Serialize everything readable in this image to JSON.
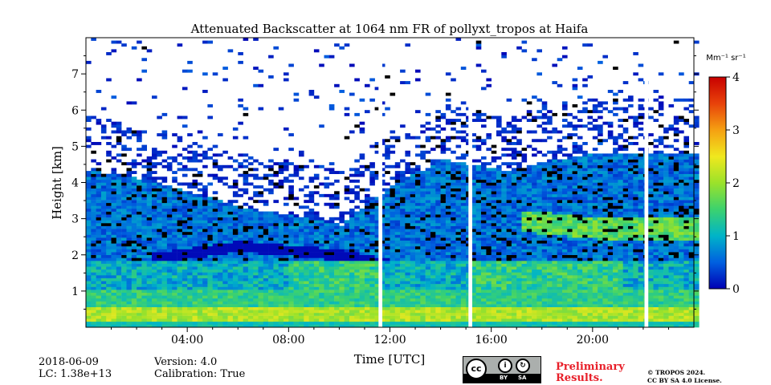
{
  "chart_data": {
    "type": "heatmap",
    "title": "Attenuated Backscatter at 1064 nm FR of pollyxt_tropos at Haifa",
    "xlabel": "Time [UTC]",
    "ylabel": "Height [km]",
    "xlim_hours": [
      0,
      24
    ],
    "ylim_km": [
      0,
      8
    ],
    "x_ticks": [
      {
        "value": 4,
        "label": "04:00"
      },
      {
        "value": 8,
        "label": "08:00"
      },
      {
        "value": 12,
        "label": "12:00"
      },
      {
        "value": 16,
        "label": "16:00"
      },
      {
        "value": 20,
        "label": "20:00"
      }
    ],
    "y_ticks": [
      {
        "value": 1,
        "label": "1"
      },
      {
        "value": 2,
        "label": "2"
      },
      {
        "value": 3,
        "label": "3"
      },
      {
        "value": 4,
        "label": "4"
      },
      {
        "value": 5,
        "label": "5"
      },
      {
        "value": 6,
        "label": "6"
      },
      {
        "value": 7,
        "label": "7"
      }
    ],
    "colorbar": {
      "label": "Mm⁻¹ sr⁻¹",
      "range": [
        0,
        4
      ],
      "ticks": [
        {
          "value": 0,
          "label": "0"
        },
        {
          "value": 1,
          "label": "1"
        },
        {
          "value": 2,
          "label": "2"
        },
        {
          "value": 3,
          "label": "3"
        },
        {
          "value": 4,
          "label": "4"
        }
      ],
      "colormap": [
        "#0000b4",
        "#0060e0",
        "#00b4c8",
        "#3cd26e",
        "#9be22a",
        "#f0e81e",
        "#f5a012",
        "#e8420a",
        "#c80000"
      ]
    },
    "no_data_gaps_hours": [
      [
        11.55,
        11.7
      ],
      [
        15.1,
        15.25
      ],
      [
        22.05,
        22.2
      ]
    ],
    "features": {
      "aerosol_layer_top_km": [
        [
          0,
          4.3
        ],
        [
          2.5,
          4.0
        ],
        [
          6,
          3.3
        ],
        [
          10,
          2.8
        ],
        [
          12,
          3.9
        ],
        [
          14,
          4.6
        ],
        [
          16.5,
          4.3
        ],
        [
          20,
          4.8
        ],
        [
          24,
          4.8
        ]
      ],
      "residual_layer_km": [
        [
          2.5,
          1.85
        ],
        [
          6,
          2.2
        ],
        [
          10,
          1.95
        ],
        [
          13,
          1.55
        ]
      ],
      "elevated_layer_km": [
        [
          17,
          2.9
        ],
        [
          20,
          2.7
        ],
        [
          24,
          2.7
        ]
      ]
    }
  },
  "footer": {
    "date": "2018-06-09",
    "lc": "LC: 1.38e+13",
    "version": "Version: 4.0",
    "calibration": "Calibration: True",
    "license_badge": {
      "cc": "cc",
      "by": "BY",
      "sa": "SA"
    },
    "preliminary_line1": "Preliminary",
    "preliminary_line2": "Results.",
    "copyright_line1": "© TROPOS 2024.",
    "copyright_line2": "CC BY SA 4.0 License."
  }
}
